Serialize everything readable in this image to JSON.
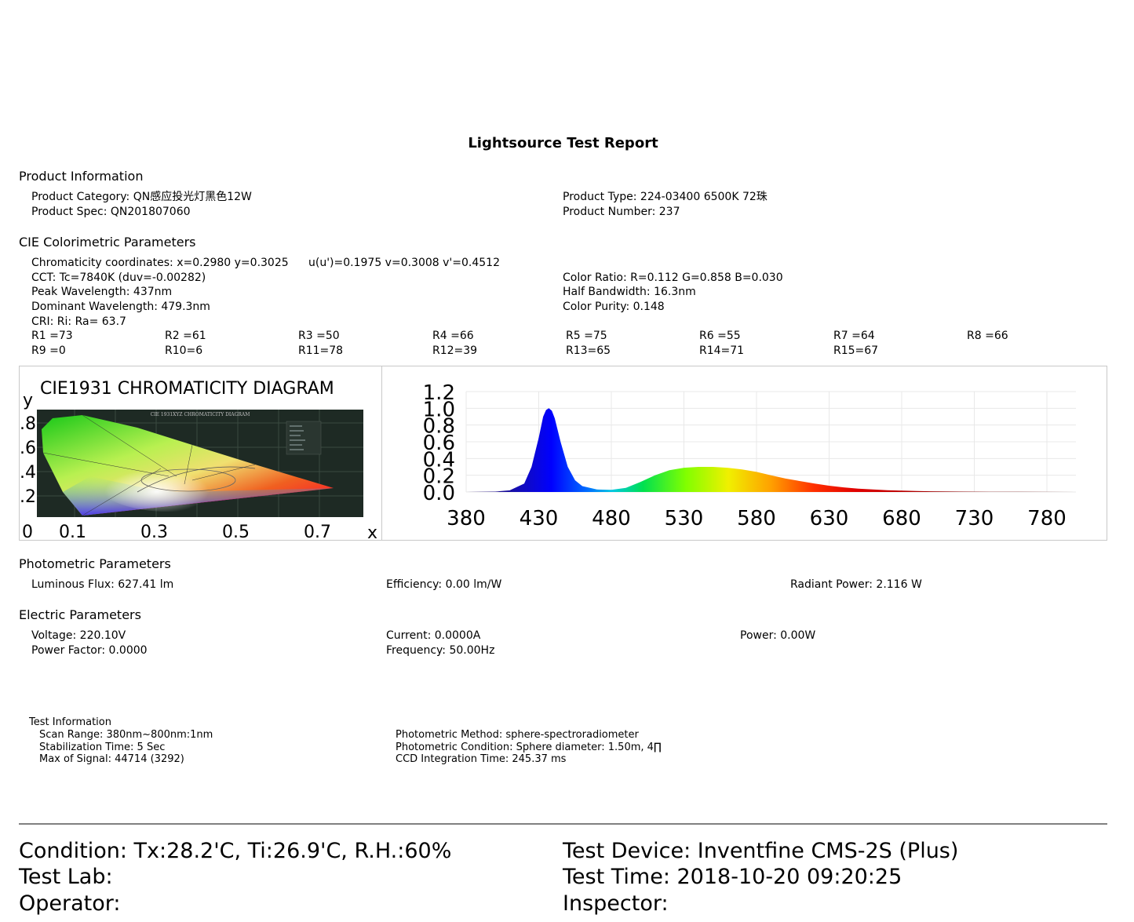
{
  "report": {
    "title": "Lightsource Test Report"
  },
  "product": {
    "heading": "Product Information",
    "category": "Product Category: QN感应投光灯黑色12W",
    "spec": "Product Spec: QN201807060",
    "type": "Product Type: 224-03400 6500K 72珠",
    "number": "Product Number: 237"
  },
  "cie": {
    "heading": "CIE Colorimetric Parameters",
    "chromaticity": "Chromaticity coordinates: x=0.2980 y=0.3025",
    "uv": "u(u')=0.1975 v=0.3008 v'=0.4512",
    "cct": "CCT: Tc=7840K (duv=-0.00282)",
    "peak": "Peak Wavelength: 437nm",
    "dominant": "Dominant Wavelength: 479.3nm",
    "cri": "CRI: Ri: Ra= 63.7",
    "color_ratio": "Color Ratio: R=0.112  G=0.858  B=0.030",
    "half_bandwidth": "Half Bandwidth: 16.3nm",
    "purity": "Color Purity: 0.148",
    "r_row1": [
      "R1 =73",
      "R2 =61",
      "R3 =50",
      "R4 =66",
      "R5 =75",
      "R6 =55",
      "R7 =64",
      "R8 =66"
    ],
    "r_row2": [
      "R9 =0",
      "R10=6",
      "R11=78",
      "R12=39",
      "R13=65",
      "R14=71",
      "R15=67"
    ]
  },
  "cie_diagram": {
    "title": "CIE1931 CHROMATICITY DIAGRAM",
    "inner_title": "CIE 1931XYZ CHROMATICITY DIAGRAM",
    "y_axis_label": "y",
    "x_axis_label": "x",
    "y_ticks": [
      ".8",
      ".6",
      ".4",
      ".2"
    ],
    "x_ticks": [
      "0",
      "0.1",
      "0.3",
      "0.5",
      "0.7"
    ]
  },
  "chart_data": {
    "type": "area",
    "xlabel": "",
    "ylabel": "",
    "xlim": [
      380,
      800
    ],
    "ylim": [
      0,
      1.2
    ],
    "x_ticks": [
      380,
      430,
      480,
      530,
      580,
      630,
      680,
      730,
      780
    ],
    "y_ticks": [
      "1.2",
      "1.0",
      "0.8",
      "0.6",
      "0.4",
      "0.2",
      "0.0"
    ],
    "grid": true,
    "x": [
      380,
      400,
      410,
      420,
      425,
      430,
      433,
      435,
      437,
      439,
      441,
      445,
      450,
      455,
      460,
      470,
      480,
      490,
      500,
      510,
      520,
      530,
      540,
      550,
      560,
      570,
      580,
      590,
      600,
      610,
      620,
      630,
      640,
      650,
      660,
      670,
      680,
      690,
      700,
      720,
      740,
      760,
      780,
      800
    ],
    "values": [
      0,
      0.005,
      0.02,
      0.1,
      0.3,
      0.65,
      0.9,
      0.98,
      1.0,
      0.97,
      0.88,
      0.6,
      0.3,
      0.14,
      0.07,
      0.03,
      0.025,
      0.05,
      0.12,
      0.2,
      0.26,
      0.29,
      0.3,
      0.3,
      0.29,
      0.27,
      0.24,
      0.2,
      0.16,
      0.13,
      0.1,
      0.075,
      0.055,
      0.04,
      0.03,
      0.022,
      0.016,
      0.011,
      0.008,
      0.005,
      0.003,
      0.002,
      0.001,
      0
    ]
  },
  "photometric": {
    "heading": "Photometric Parameters",
    "flux": "Luminous Flux: 627.41 lm",
    "efficiency": "Efficiency: 0.00 lm/W",
    "radiant": "Radiant Power: 2.116 W"
  },
  "electric": {
    "heading": "Electric Parameters",
    "voltage": "Voltage: 220.10V",
    "current": "Current: 0.0000A",
    "power": "Power: 0.00W",
    "pf": "Power Factor: 0.0000",
    "frequency": "Frequency: 50.00Hz"
  },
  "test_info": {
    "heading": "Test Information",
    "scan": "Scan Range: 380nm~800nm:1nm",
    "stabilization": "Stabilization Time: 5 Sec",
    "max_signal": "Max of Signal: 44714 (3292)",
    "method": "Photometric Method: sphere-spectroradiometer",
    "condition": "Photometric Condition: Sphere diameter: 1.50m, 4∏",
    "ccd": "CCD Integration Time: 245.37 ms"
  },
  "footer": {
    "condition": "Condition: Tx:28.2'C, Ti:26.9'C, R.H.:60%",
    "lab": "Test Lab:",
    "operator": "Operator:",
    "device": "Test Device: Inventfine CMS-2S (Plus)",
    "time": "Test Time: 2018-10-20 09:20:25",
    "inspector": "Inspector:"
  }
}
